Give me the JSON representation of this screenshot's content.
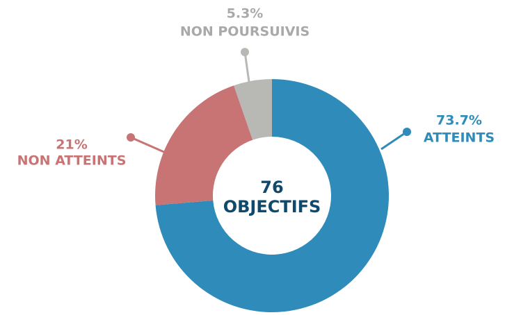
{
  "chart_data": {
    "type": "donut",
    "categories": [
      "ATTEINTS",
      "NON ATTEINTS",
      "NON POURSUIVIS"
    ],
    "values": [
      73.7,
      21,
      5.3
    ],
    "value_labels": [
      "73.7%",
      "21%",
      "5.3%"
    ],
    "colors": [
      "#2e8bba",
      "#c87474",
      "#b8b8b4"
    ],
    "label_colors": [
      "#2e8bba",
      "#c87474",
      "#a9a9a9"
    ],
    "center_value": 76,
    "center_label": "OBJECTIFS"
  }
}
